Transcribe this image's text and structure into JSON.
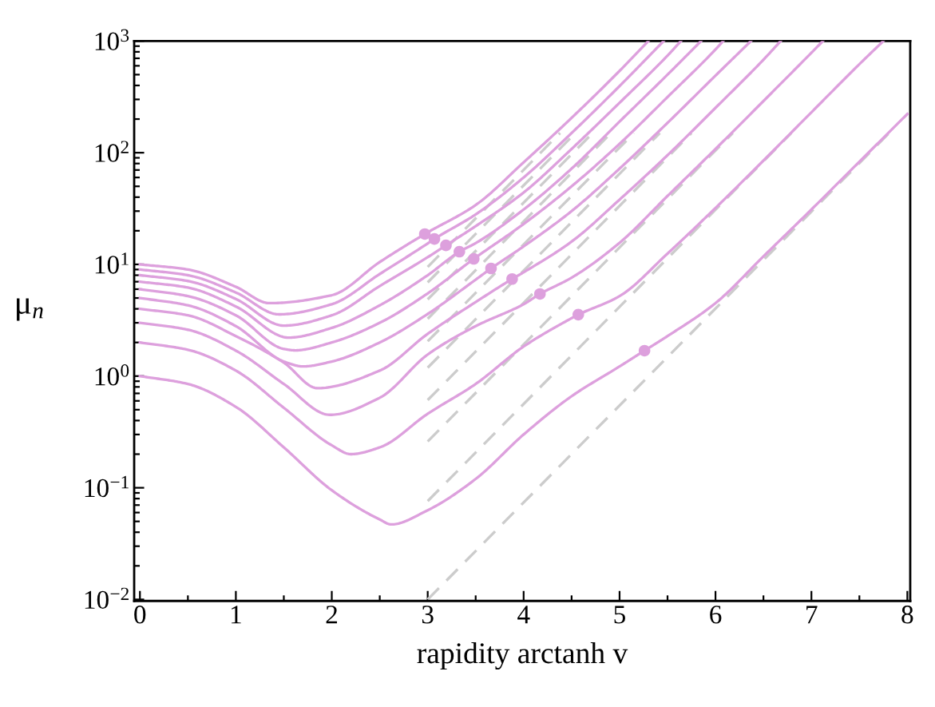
{
  "chart_data": {
    "type": "line",
    "xlabel": "rapidity arctanh v",
    "ylabel": "μ$_{n}$",
    "log": "y",
    "grid": false,
    "xlim": [
      -0.06,
      8.03
    ],
    "ylim": [
      0.0097,
      1000
    ],
    "xticks": [
      0,
      1,
      2,
      3,
      4,
      5,
      6,
      7,
      8,
      {
        "value": 0.5,
        "label": null
      },
      {
        "value": 1.5,
        "label": null
      },
      {
        "value": 2.5,
        "label": null
      },
      {
        "value": 3.5,
        "label": null
      },
      {
        "value": 4.5,
        "label": null
      },
      {
        "value": 5.5,
        "label": null
      },
      {
        "value": 6.5,
        "label": null
      },
      {
        "value": 7.5,
        "label": null
      }
    ],
    "yticks": [
      {
        "value": 0.01,
        "label": "10$^{−2}$"
      },
      {
        "value": 0.1,
        "label": "10$^{−1}$"
      },
      {
        "value": 1,
        "label": "10$^{0}$"
      },
      {
        "value": 10,
        "label": "10$^{1}$"
      },
      {
        "value": 100,
        "label": "10$^{2}$"
      },
      {
        "value": 1000,
        "label": "10$^{3}$"
      },
      {
        "value": 0.02,
        "label": null
      },
      {
        "value": 0.03,
        "label": null
      },
      {
        "value": 0.04,
        "label": null
      },
      {
        "value": 0.05,
        "label": null
      },
      {
        "value": 0.06,
        "label": null
      },
      {
        "value": 0.07,
        "label": null
      },
      {
        "value": 0.08,
        "label": null
      },
      {
        "value": 0.09,
        "label": null
      },
      {
        "value": 0.2,
        "label": null
      },
      {
        "value": 0.3,
        "label": null
      },
      {
        "value": 0.4,
        "label": null
      },
      {
        "value": 0.5,
        "label": null
      },
      {
        "value": 0.6,
        "label": null
      },
      {
        "value": 0.7,
        "label": null
      },
      {
        "value": 0.8,
        "label": null
      },
      {
        "value": 0.9,
        "label": null
      },
      {
        "value": 2,
        "label": null
      },
      {
        "value": 3,
        "label": null
      },
      {
        "value": 4,
        "label": null
      },
      {
        "value": 5,
        "label": null
      },
      {
        "value": 6,
        "label": null
      },
      {
        "value": 7,
        "label": null
      },
      {
        "value": 8,
        "label": null
      },
      {
        "value": 9,
        "label": null
      },
      {
        "value": 20,
        "label": null
      },
      {
        "value": 30,
        "label": null
      },
      {
        "value": 40,
        "label": null
      },
      {
        "value": 50,
        "label": null
      },
      {
        "value": 60,
        "label": null
      },
      {
        "value": 70,
        "label": null
      },
      {
        "value": 80,
        "label": null
      },
      {
        "value": 90,
        "label": null
      },
      {
        "value": 200,
        "label": null
      },
      {
        "value": 300,
        "label": null
      },
      {
        "value": 400,
        "label": null
      },
      {
        "value": 500,
        "label": null
      },
      {
        "value": 600,
        "label": null
      },
      {
        "value": 700,
        "label": null
      },
      {
        "value": 800,
        "label": null
      },
      {
        "value": 900,
        "label": null
      }
    ],
    "series": [
      {
        "type": "line",
        "line_style": "dashed",
        "color": "#cccccc",
        "x": [
          3,
          7.81
        ],
        "values": [
          0.01,
          150
        ]
      },
      {
        "type": "line",
        "line_style": "dashed",
        "color": "#cccccc",
        "x": [
          3,
          6.79
        ],
        "values": [
          0.076,
          150
        ]
      },
      {
        "type": "line",
        "line_style": "dashed",
        "color": "#cccccc",
        "x": [
          3,
          6.18
        ],
        "values": [
          0.26,
          150
        ]
      },
      {
        "type": "line",
        "line_style": "dashed",
        "color": "#cccccc",
        "x": [
          3,
          5.75
        ],
        "values": [
          0.61,
          150
        ]
      },
      {
        "type": "line",
        "line_style": "dashed",
        "color": "#cccccc",
        "x": [
          3,
          5.42
        ],
        "values": [
          1.19,
          150
        ]
      },
      {
        "type": "line",
        "line_style": "dashed",
        "color": "#cccccc",
        "x": [
          3,
          5.15
        ],
        "values": [
          2.05,
          150
        ]
      },
      {
        "type": "line",
        "line_style": "dashed",
        "color": "#cccccc",
        "x": [
          3,
          4.91
        ],
        "values": [
          3.26,
          150
        ]
      },
      {
        "type": "line",
        "line_style": "dashed",
        "color": "#cccccc",
        "x": [
          3,
          4.72
        ],
        "values": [
          4.86,
          150
        ]
      },
      {
        "type": "line",
        "line_style": "dashed",
        "color": "#cccccc",
        "x": [
          3,
          4.54
        ],
        "values": [
          6.9,
          150
        ]
      },
      {
        "type": "line",
        "line_style": "dashed",
        "color": "#cccccc",
        "x": [
          3,
          4.38
        ],
        "values": [
          9.5,
          150
        ]
      },
      {
        "line_style": "solid",
        "color": "#dda0dd",
        "x": [
          0,
          0.5,
          1,
          1.5,
          2,
          2.5,
          2.62,
          3,
          3.5,
          4,
          4.5,
          5,
          5.26,
          5.5,
          6,
          6.5,
          7,
          7.5,
          8
        ],
        "values": [
          1,
          0.85,
          0.53,
          0.23,
          0.095,
          0.052,
          0.047,
          0.063,
          0.12,
          0.3,
          0.66,
          1.22,
          1.69,
          2.28,
          4.5,
          11.8,
          31,
          83,
          222
        ]
      },
      {
        "line_style": "solid",
        "color": "#dda0dd",
        "x": [
          0,
          0.5,
          1,
          1.5,
          2,
          2.2,
          2.5,
          3,
          3.5,
          4,
          4.5,
          4.57,
          5,
          5.5,
          6,
          6.5,
          7,
          7.5,
          7.75
        ],
        "values": [
          2,
          1.72,
          1.12,
          0.52,
          0.24,
          0.2,
          0.23,
          0.46,
          0.85,
          1.84,
          3.3,
          3.55,
          5.2,
          12.5,
          32,
          85,
          230,
          620,
          1000
        ]
      },
      {
        "line_style": "solid",
        "color": "#dda0dd",
        "x": [
          0,
          0.5,
          1,
          1.5,
          1.98,
          2.5,
          3,
          3.5,
          4,
          4.17,
          4.5,
          5,
          5.5,
          6,
          6.5,
          7,
          7.12
        ],
        "values": [
          3,
          2.6,
          1.69,
          0.85,
          0.45,
          0.64,
          1.56,
          2.8,
          4.4,
          5.44,
          7.6,
          15.6,
          41,
          108,
          290,
          785,
          1000
        ]
      },
      {
        "line_style": "solid",
        "color": "#dda0dd",
        "x": [
          0,
          0.5,
          1,
          1.5,
          1.85,
          2.5,
          3,
          3.5,
          3.88,
          4,
          4.5,
          5,
          5.5,
          6,
          6.5,
          6.68
        ],
        "values": [
          4,
          3.5,
          2.28,
          1.32,
          0.78,
          1.12,
          2.39,
          4.6,
          7.4,
          8.5,
          16,
          38,
          95,
          252,
          680,
          1000
        ]
      },
      {
        "line_style": "solid",
        "color": "#dda0dd",
        "x": [
          0,
          0.5,
          1,
          1.5,
          1.7,
          2,
          2.5,
          3,
          3.5,
          3.66,
          4,
          4.5,
          5,
          5.5,
          6,
          6.37
        ],
        "values": [
          5,
          4.3,
          2.8,
          1.35,
          1.22,
          1.35,
          2.0,
          3.6,
          7.3,
          9.2,
          14.5,
          30,
          72,
          185,
          490,
          1000
        ]
      },
      {
        "line_style": "solid",
        "color": "#dda0dd",
        "x": [
          0,
          0.5,
          1,
          1.5,
          1.62,
          2,
          2.5,
          3,
          3.48,
          4,
          4.5,
          5,
          5.5,
          6,
          6.08
        ],
        "values": [
          6,
          5.2,
          3.5,
          1.75,
          1.7,
          2.0,
          3.0,
          5.5,
          11.2,
          23,
          50,
          120,
          315,
          840,
          1000
        ]
      },
      {
        "line_style": "solid",
        "color": "#dda0dd",
        "x": [
          0,
          0.5,
          1,
          1.55,
          2,
          2.5,
          3,
          3.33,
          3.5,
          4,
          4.5,
          5,
          5.5,
          5.85
        ],
        "values": [
          7,
          6.2,
          4.2,
          2.21,
          2.7,
          4.3,
          8.0,
          13,
          15.5,
          31,
          72,
          190,
          500,
          1000
        ]
      },
      {
        "line_style": "solid",
        "color": "#dda0dd",
        "x": [
          0,
          0.5,
          1,
          1.5,
          2,
          2.5,
          3,
          3.19,
          3.5,
          4,
          4.5,
          5,
          5.5,
          5.64
        ],
        "values": [
          8,
          7.1,
          4.9,
          2.83,
          3.5,
          6.4,
          11.6,
          14.8,
          22,
          44,
          108,
          280,
          740,
          1000
        ]
      },
      {
        "line_style": "solid",
        "color": "#dda0dd",
        "x": [
          0,
          0.5,
          1,
          1.45,
          2,
          2.5,
          3,
          3.07,
          3.5,
          4,
          4.5,
          5,
          5.46
        ],
        "values": [
          9,
          8.0,
          5.6,
          3.57,
          4.4,
          8.2,
          15.4,
          16.9,
          28,
          60,
          150,
          395,
          1000
        ]
      },
      {
        "line_style": "solid",
        "color": "#dda0dd",
        "x": [
          0,
          0.5,
          1,
          1.35,
          2,
          2.5,
          2.97,
          3.5,
          4,
          4.5,
          5,
          5.3
        ],
        "values": [
          10,
          9.0,
          6.3,
          4.5,
          5.3,
          10.5,
          18.7,
          34,
          82,
          205,
          540,
          1000
        ]
      },
      {
        "type": "scatter",
        "marker": "circle",
        "color": "#dda0dd",
        "x": [
          5.26,
          4.57,
          4.17,
          3.88,
          3.66,
          3.48,
          3.33,
          3.19,
          3.07,
          2.97
        ],
        "values": [
          1.69,
          3.55,
          5.44,
          7.4,
          9.2,
          11.2,
          13,
          14.8,
          16.9,
          18.7
        ]
      }
    ]
  }
}
